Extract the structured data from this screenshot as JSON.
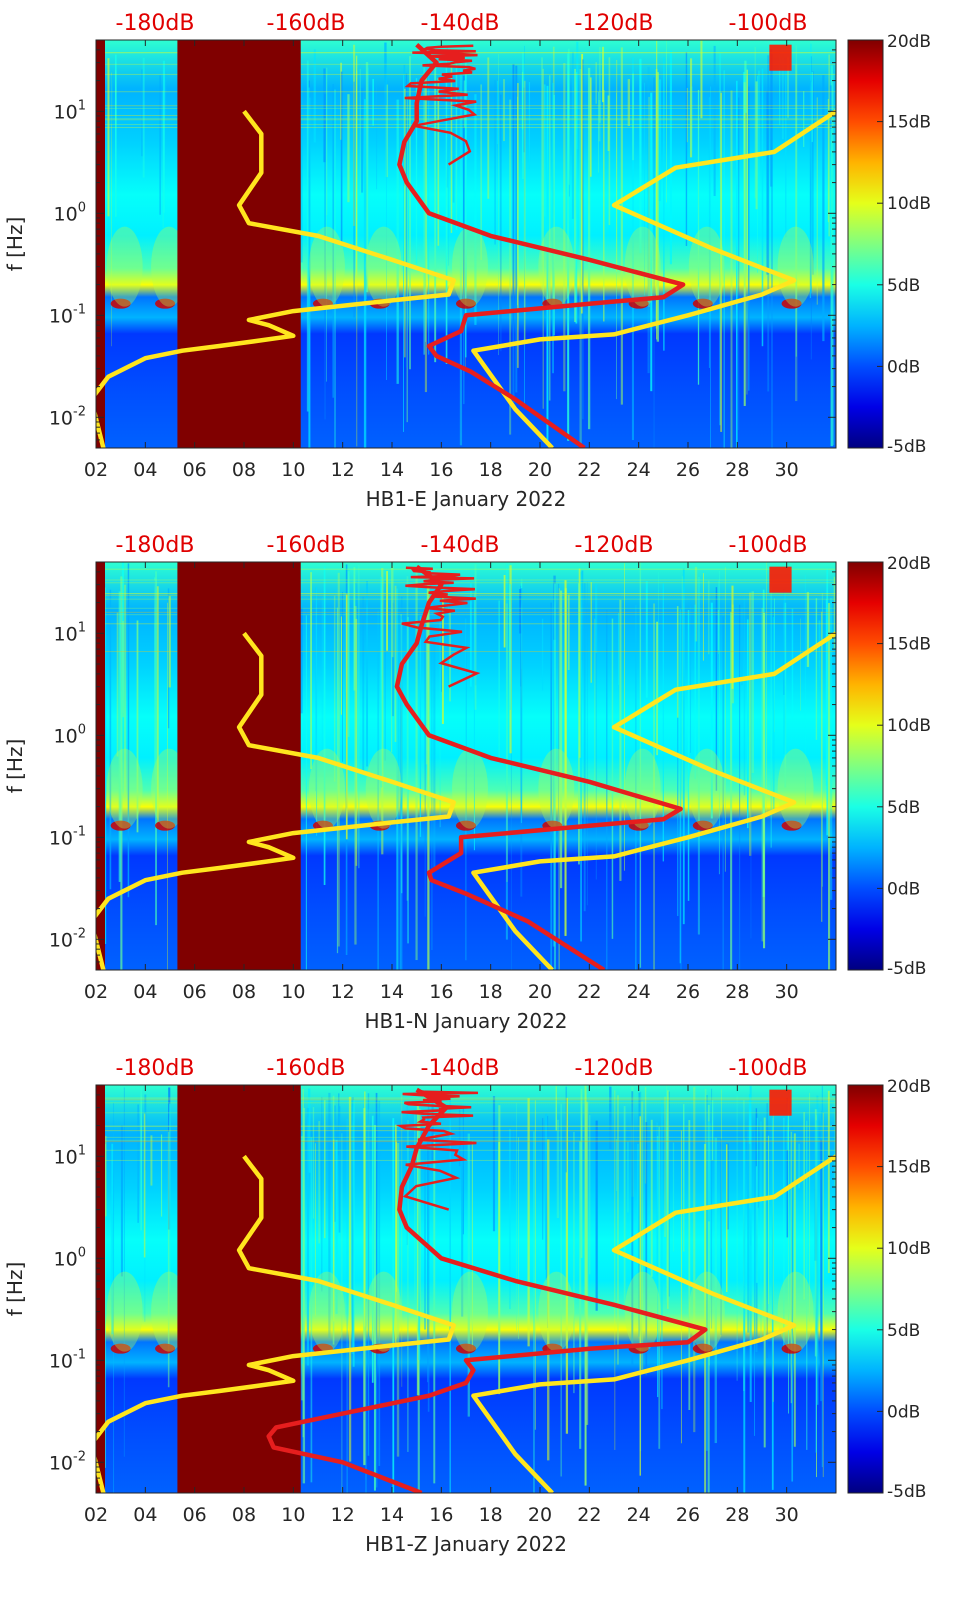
{
  "chart_data": [
    {
      "type": "heatmap",
      "title": "",
      "xlabel": "HB1-E January 2022",
      "ylabel": "f [Hz]",
      "x_ticks": [
        "02",
        "04",
        "06",
        "08",
        "10",
        "12",
        "14",
        "16",
        "18",
        "20",
        "22",
        "24",
        "26",
        "28",
        "30"
      ],
      "xlim": [
        2,
        32
      ],
      "ylim": [
        0.005,
        50
      ],
      "y_scale": "log",
      "y_ticks": [
        "10^{-2}",
        "10^{-1}",
        "10^{0}",
        "10^{1}"
      ],
      "top_axis_label": [
        "-180dB",
        "-160dB",
        "-140dB",
        "-120dB",
        "-100dB"
      ],
      "colorbar": {
        "labels": [
          "20dB",
          "15dB",
          "10dB",
          "5dB",
          "0dB",
          "-5dB"
        ],
        "range": [
          -5,
          20
        ],
        "colormap": "jet"
      },
      "data_gap_days": [
        [
          5.3,
          10.3
        ]
      ],
      "series": [
        {
          "color": "#ffe61e",
          "points": [
            [
              2.3,
              0.005
            ],
            [
              1.8,
              0.015
            ],
            [
              2.5,
              0.025
            ],
            [
              4.0,
              0.038
            ],
            [
              5.5,
              0.045
            ],
            [
              7.0,
              0.05
            ],
            [
              8.5,
              0.056
            ],
            [
              10.0,
              0.063
            ],
            [
              9.0,
              0.08
            ],
            [
              8.2,
              0.09
            ],
            [
              10.0,
              0.11
            ],
            [
              14.0,
              0.14
            ],
            [
              16.3,
              0.16
            ],
            [
              16.5,
              0.22
            ],
            [
              14.0,
              0.35
            ],
            [
              11.0,
              0.6
            ],
            [
              8.2,
              0.8
            ],
            [
              7.8,
              1.2
            ],
            [
              8.7,
              2.5
            ],
            [
              8.7,
              6.0
            ],
            [
              8.0,
              10.0
            ]
          ]
        },
        {
          "color": "#ffe61e",
          "points": [
            [
              20.5,
              0.005
            ],
            [
              19.0,
              0.012
            ],
            [
              17.3,
              0.045
            ],
            [
              20.0,
              0.058
            ],
            [
              23.0,
              0.065
            ],
            [
              26.0,
              0.1
            ],
            [
              29.0,
              0.16
            ],
            [
              30.3,
              0.22
            ],
            [
              27.0,
              0.45
            ],
            [
              23.0,
              1.2
            ],
            [
              25.5,
              2.8
            ],
            [
              29.5,
              4.0
            ],
            [
              32.0,
              10.0
            ]
          ]
        },
        {
          "color": "#e61e1e",
          "points": [
            [
              21.8,
              0.005
            ],
            [
              19.0,
              0.015
            ],
            [
              17.2,
              0.028
            ],
            [
              15.8,
              0.04
            ],
            [
              15.5,
              0.05
            ],
            [
              16.8,
              0.07
            ],
            [
              17.0,
              0.1
            ],
            [
              22.0,
              0.13
            ],
            [
              25.0,
              0.15
            ],
            [
              25.8,
              0.2
            ],
            [
              22.0,
              0.35
            ],
            [
              18.0,
              0.6
            ],
            [
              15.5,
              1.0
            ],
            [
              14.6,
              2.0
            ],
            [
              14.3,
              3.0
            ],
            [
              14.5,
              5.0
            ],
            [
              15.0,
              8.0
            ],
            [
              15.0,
              12.0
            ],
            [
              15.2,
              20.0
            ],
            [
              15.8,
              30.0
            ],
            [
              15.0,
              45.0
            ]
          ]
        }
      ]
    },
    {
      "type": "heatmap",
      "title": "",
      "xlabel": "HB1-N January 2022",
      "ylabel": "f [Hz]",
      "x_ticks": [
        "02",
        "04",
        "06",
        "08",
        "10",
        "12",
        "14",
        "16",
        "18",
        "20",
        "22",
        "24",
        "26",
        "28",
        "30"
      ],
      "xlim": [
        2,
        32
      ],
      "ylim": [
        0.005,
        50
      ],
      "y_scale": "log",
      "y_ticks": [
        "10^{-2}",
        "10^{-1}",
        "10^{0}",
        "10^{1}"
      ],
      "top_axis_label": [
        "-180dB",
        "-160dB",
        "-140dB",
        "-120dB",
        "-100dB"
      ],
      "colorbar": {
        "labels": [
          "20dB",
          "15dB",
          "10dB",
          "5dB",
          "0dB",
          "-5dB"
        ],
        "range": [
          -5,
          20
        ],
        "colormap": "jet"
      },
      "data_gap_days": [
        [
          5.3,
          10.3
        ]
      ],
      "series": [
        {
          "color": "#ffe61e",
          "points": [
            [
              2.3,
              0.005
            ],
            [
              1.8,
              0.015
            ],
            [
              2.5,
              0.025
            ],
            [
              4.0,
              0.038
            ],
            [
              5.5,
              0.045
            ],
            [
              7.0,
              0.05
            ],
            [
              8.5,
              0.056
            ],
            [
              10.0,
              0.063
            ],
            [
              9.0,
              0.08
            ],
            [
              8.2,
              0.09
            ],
            [
              10.0,
              0.11
            ],
            [
              14.0,
              0.14
            ],
            [
              16.3,
              0.16
            ],
            [
              16.5,
              0.22
            ],
            [
              14.0,
              0.35
            ],
            [
              11.0,
              0.6
            ],
            [
              8.2,
              0.8
            ],
            [
              7.8,
              1.2
            ],
            [
              8.7,
              2.5
            ],
            [
              8.7,
              6.0
            ],
            [
              8.0,
              10.0
            ]
          ]
        },
        {
          "color": "#ffe61e",
          "points": [
            [
              20.5,
              0.005
            ],
            [
              19.0,
              0.012
            ],
            [
              17.3,
              0.045
            ],
            [
              20.0,
              0.058
            ],
            [
              23.0,
              0.065
            ],
            [
              26.0,
              0.1
            ],
            [
              29.0,
              0.16
            ],
            [
              30.3,
              0.22
            ],
            [
              27.0,
              0.45
            ],
            [
              23.0,
              1.2
            ],
            [
              25.5,
              2.8
            ],
            [
              29.5,
              4.0
            ],
            [
              32.0,
              10.0
            ]
          ]
        },
        {
          "color": "#e61e1e",
          "points": [
            [
              22.6,
              0.005
            ],
            [
              19.5,
              0.015
            ],
            [
              17.0,
              0.028
            ],
            [
              15.6,
              0.038
            ],
            [
              15.5,
              0.045
            ],
            [
              16.8,
              0.07
            ],
            [
              16.8,
              0.1
            ],
            [
              22.0,
              0.13
            ],
            [
              25.0,
              0.15
            ],
            [
              25.7,
              0.19
            ],
            [
              22.0,
              0.35
            ],
            [
              18.0,
              0.6
            ],
            [
              15.5,
              1.0
            ],
            [
              14.6,
              2.0
            ],
            [
              14.2,
              3.0
            ],
            [
              14.4,
              5.0
            ],
            [
              15.0,
              8.0
            ],
            [
              15.2,
              12.0
            ],
            [
              15.5,
              20.0
            ],
            [
              16.0,
              30.0
            ],
            [
              15.0,
              45.0
            ]
          ]
        }
      ]
    },
    {
      "type": "heatmap",
      "title": "",
      "xlabel": "HB1-Z January 2022",
      "ylabel": "f [Hz]",
      "x_ticks": [
        "02",
        "04",
        "06",
        "08",
        "10",
        "12",
        "14",
        "16",
        "18",
        "20",
        "22",
        "24",
        "26",
        "28",
        "30"
      ],
      "xlim": [
        2,
        32
      ],
      "ylim": [
        0.005,
        50
      ],
      "y_scale": "log",
      "y_ticks": [
        "10^{-2}",
        "10^{-1}",
        "10^{0}",
        "10^{1}"
      ],
      "top_axis_label": [
        "-180dB",
        "-160dB",
        "-140dB",
        "-120dB",
        "-100dB"
      ],
      "colorbar": {
        "labels": [
          "20dB",
          "15dB",
          "10dB",
          "5dB",
          "0dB",
          "-5dB"
        ],
        "range": [
          -5,
          20
        ],
        "colormap": "jet"
      },
      "data_gap_days": [
        [
          5.3,
          10.3
        ]
      ],
      "series": [
        {
          "color": "#ffe61e",
          "points": [
            [
              2.3,
              0.005
            ],
            [
              1.8,
              0.015
            ],
            [
              2.5,
              0.025
            ],
            [
              4.0,
              0.038
            ],
            [
              5.5,
              0.045
            ],
            [
              7.0,
              0.05
            ],
            [
              8.5,
              0.056
            ],
            [
              10.0,
              0.063
            ],
            [
              9.0,
              0.08
            ],
            [
              8.2,
              0.09
            ],
            [
              10.0,
              0.11
            ],
            [
              14.0,
              0.14
            ],
            [
              16.3,
              0.16
            ],
            [
              16.5,
              0.22
            ],
            [
              14.0,
              0.35
            ],
            [
              11.0,
              0.6
            ],
            [
              8.2,
              0.8
            ],
            [
              7.8,
              1.2
            ],
            [
              8.7,
              2.5
            ],
            [
              8.7,
              6.0
            ],
            [
              8.0,
              10.0
            ]
          ]
        },
        {
          "color": "#ffe61e",
          "points": [
            [
              20.5,
              0.005
            ],
            [
              19.0,
              0.012
            ],
            [
              17.3,
              0.045
            ],
            [
              20.0,
              0.058
            ],
            [
              23.0,
              0.065
            ],
            [
              26.0,
              0.1
            ],
            [
              29.0,
              0.16
            ],
            [
              30.3,
              0.22
            ],
            [
              27.0,
              0.45
            ],
            [
              23.0,
              1.2
            ],
            [
              25.5,
              2.8
            ],
            [
              29.5,
              4.0
            ],
            [
              32.0,
              10.0
            ]
          ]
        },
        {
          "color": "#e61e1e",
          "points": [
            [
              15.2,
              0.005
            ],
            [
              12.0,
              0.01
            ],
            [
              9.2,
              0.014
            ],
            [
              9.0,
              0.018
            ],
            [
              9.3,
              0.022
            ],
            [
              12.0,
              0.03
            ],
            [
              15.5,
              0.045
            ],
            [
              17.0,
              0.06
            ],
            [
              17.3,
              0.08
            ],
            [
              17.0,
              0.1
            ],
            [
              22.0,
              0.13
            ],
            [
              26.0,
              0.15
            ],
            [
              26.7,
              0.2
            ],
            [
              23.0,
              0.35
            ],
            [
              19.0,
              0.6
            ],
            [
              16.0,
              1.0
            ],
            [
              14.6,
              2.0
            ],
            [
              14.3,
              3.0
            ],
            [
              14.4,
              5.0
            ],
            [
              14.8,
              8.0
            ],
            [
              15.0,
              12.0
            ],
            [
              15.5,
              20.0
            ],
            [
              16.2,
              30.0
            ],
            [
              15.0,
              45.0
            ]
          ]
        }
      ]
    }
  ]
}
